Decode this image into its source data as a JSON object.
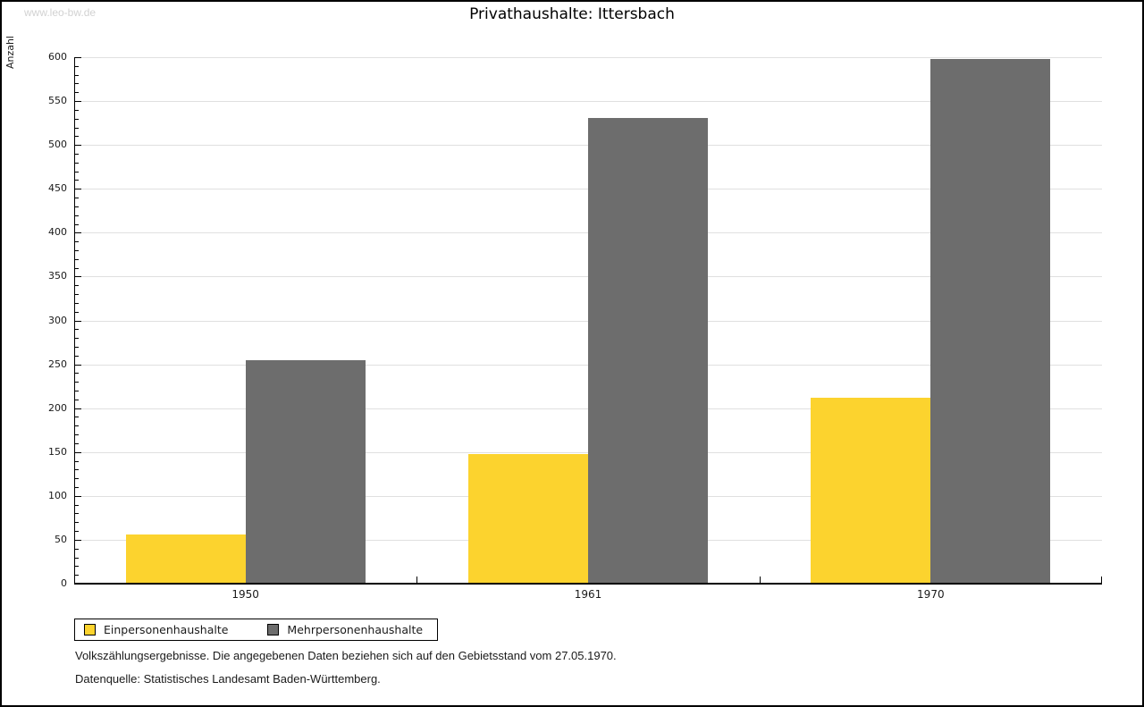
{
  "page": {
    "watermark": "www.leo-bw.de"
  },
  "chart_data": {
    "type": "bar",
    "title": "Privathaushalte: Ittersbach",
    "xlabel": "",
    "ylabel": "Anzahl",
    "categories": [
      "1950",
      "1961",
      "1970"
    ],
    "series": [
      {
        "name": "Einpersonenhaushalte",
        "color": "#FCD32E",
        "values": [
          55,
          147,
          211
        ]
      },
      {
        "name": "Mehrpersonenhaushalte",
        "color": "#6D6D6D",
        "values": [
          254,
          530,
          597
        ]
      }
    ],
    "ylim": [
      0,
      600
    ],
    "ytick_major": 50,
    "ytick_minor": 10,
    "grid": true,
    "grid_color": "#E0E0E0",
    "legend_position": "bottom-left"
  },
  "footnotes": [
    "Volkszählungsergebnisse. Die angegebenen Daten beziehen sich auf den Gebietsstand vom 27.05.1970.",
    "Datenquelle: Statistisches Landesamt Baden-Württemberg."
  ]
}
